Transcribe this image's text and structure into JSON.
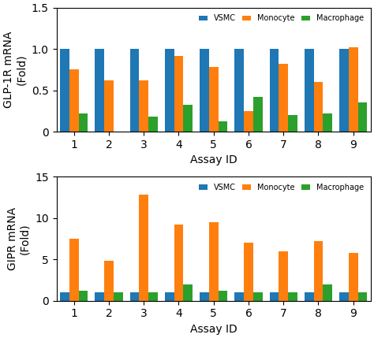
{
  "chart_data": [
    {
      "type": "bar",
      "categories": [
        "1",
        "2",
        "3",
        "4",
        "5",
        "6",
        "7",
        "8",
        "9"
      ],
      "series": [
        {
          "name": "VSMC",
          "values": [
            1.0,
            1.0,
            1.0,
            1.0,
            1.0,
            1.0,
            1.0,
            1.0,
            1.0
          ]
        },
        {
          "name": "Monocyte",
          "values": [
            0.75,
            0.62,
            0.62,
            0.92,
            0.78,
            0.25,
            0.82,
            0.6,
            1.02
          ]
        },
        {
          "name": "Macrophage",
          "values": [
            0.22,
            0.0,
            0.18,
            0.32,
            0.12,
            0.42,
            0.2,
            0.22,
            0.35
          ]
        }
      ],
      "x_label": "Assay ID",
      "y_label": "GLP-1R mRNA\n(Fold)",
      "ylim": [
        0,
        1.5
      ],
      "yticks": [
        0,
        0.5,
        {
          "value": 1.0,
          "label": "1.0"
        },
        1.5
      ],
      "legend": "upper right",
      "grid": false
    },
    {
      "type": "bar",
      "categories": [
        "1",
        "2",
        "3",
        "4",
        "5",
        "6",
        "7",
        "8",
        "9"
      ],
      "series": [
        {
          "name": "VSMC",
          "values": [
            1.0,
            1.0,
            1.0,
            1.0,
            1.0,
            1.0,
            1.0,
            1.0,
            1.0
          ]
        },
        {
          "name": "Monocyte",
          "values": [
            7.5,
            4.8,
            12.8,
            9.2,
            9.5,
            7.0,
            6.0,
            7.2,
            5.8
          ]
        },
        {
          "name": "Macrophage",
          "values": [
            1.2,
            1.0,
            1.0,
            2.0,
            1.2,
            1.0,
            1.0,
            2.0,
            1.0
          ]
        }
      ],
      "x_label": "Assay ID",
      "y_label": "GIPR mRNA\n(Fold)",
      "ylim": [
        0,
        15
      ],
      "yticks": [
        0,
        5,
        10,
        15
      ],
      "legend": "upper right",
      "grid": false
    }
  ]
}
